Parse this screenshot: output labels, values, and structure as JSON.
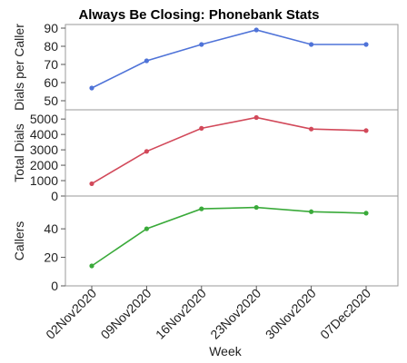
{
  "chart_data": {
    "type": "line",
    "title": "Always Be Closing: Phonebank Stats",
    "xlabel": "Week",
    "categories": [
      "02Nov2020",
      "09Nov2020",
      "16Nov2020",
      "23Nov2020",
      "30Nov2020",
      "07Dec2020"
    ],
    "panels": [
      {
        "ylabel": "Dials per Caller",
        "ylim": [
          45,
          92
        ],
        "yticks": [
          50,
          60,
          70,
          80,
          90
        ],
        "color": "#4f73d8",
        "values": [
          57,
          72,
          81,
          89,
          81,
          81
        ]
      },
      {
        "ylabel": "Total Dials",
        "ylim": [
          0,
          5600
        ],
        "yticks": [
          0,
          1000,
          2000,
          3000,
          4000,
          5000
        ],
        "color": "#d2495a",
        "values": [
          800,
          2900,
          4400,
          5100,
          4350,
          4250
        ]
      },
      {
        "ylabel": "Callers",
        "ylim": [
          0,
          63
        ],
        "yticks": [
          0,
          20,
          40
        ],
        "color": "#3aaa3a",
        "values": [
          14,
          40,
          54,
          55,
          52,
          51
        ]
      }
    ]
  }
}
